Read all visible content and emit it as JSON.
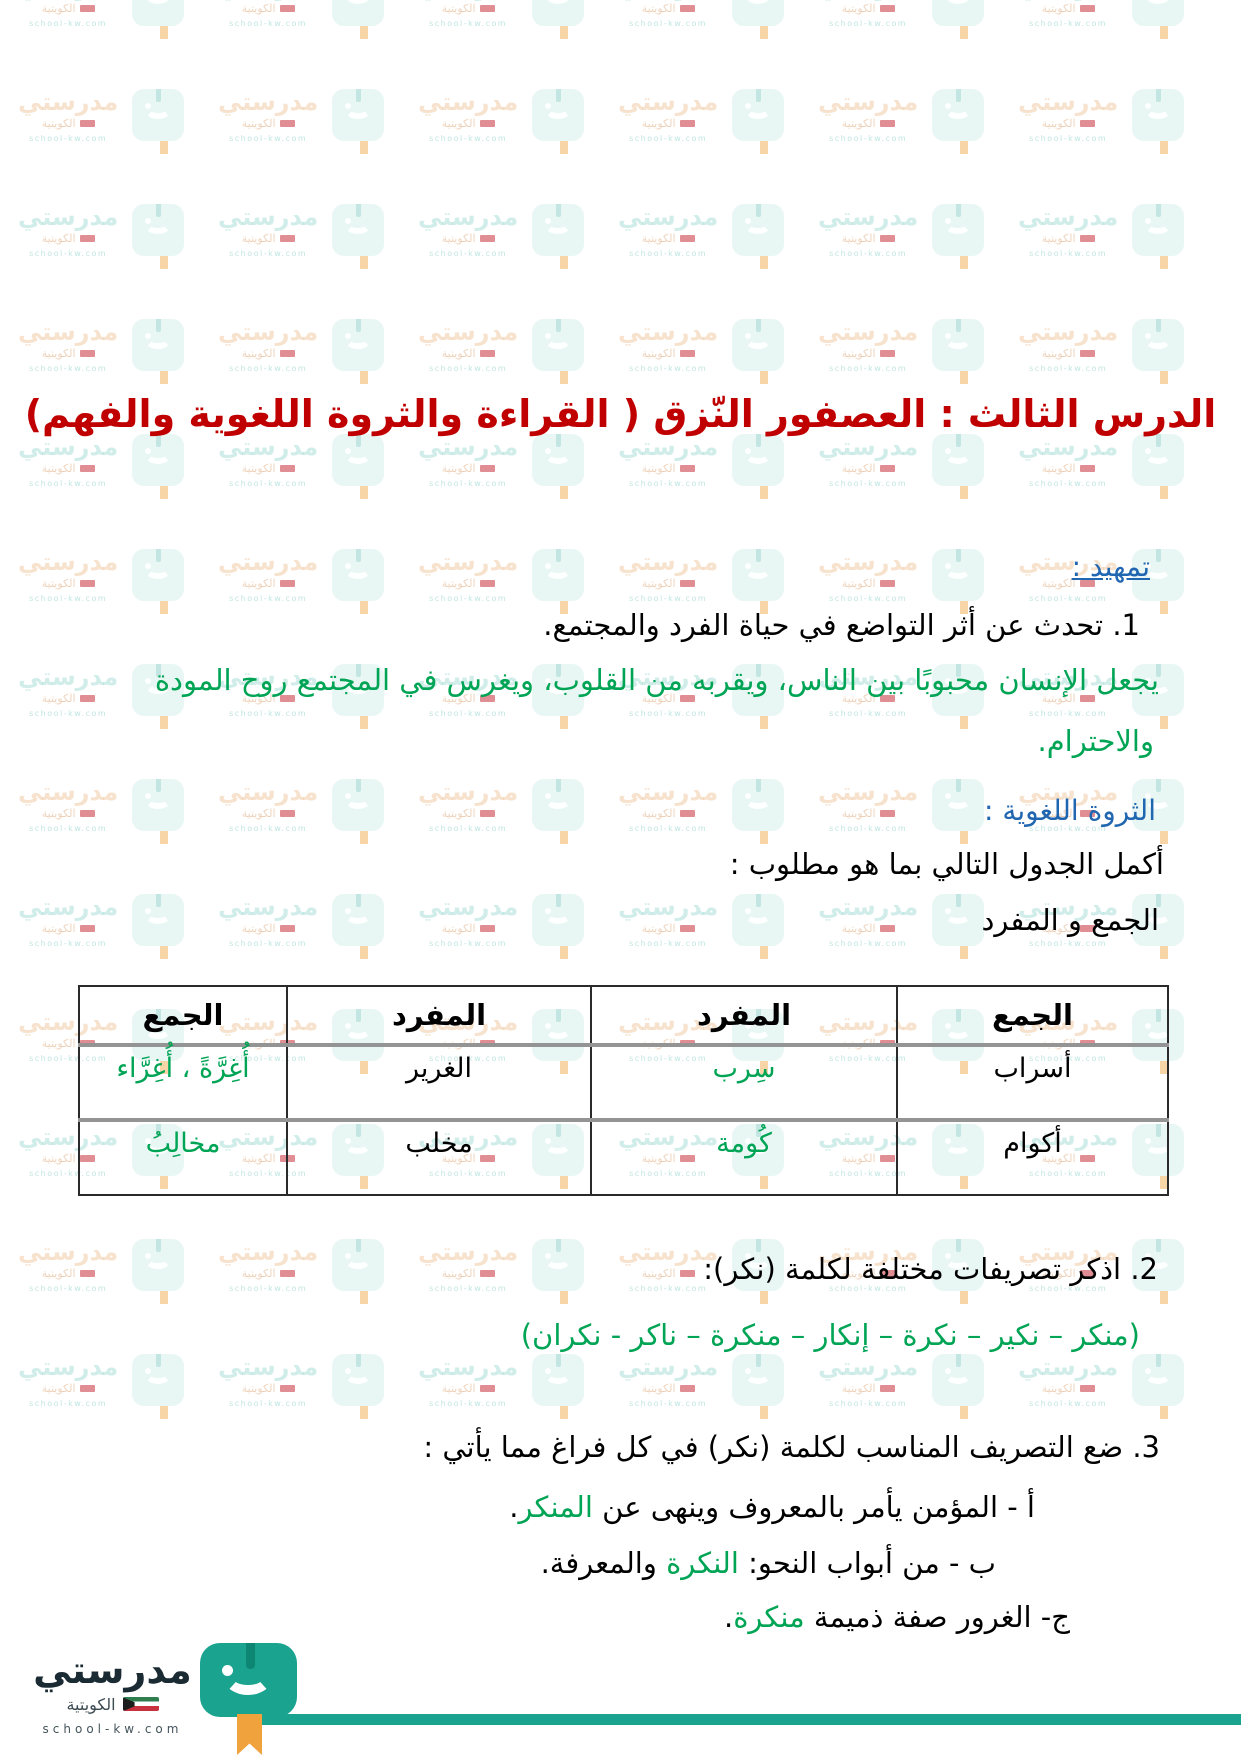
{
  "page": {
    "title": "الدرس الثالث : العصفور النّزق ( القراءة والثروة اللغوية والفهم)"
  },
  "tamheed": {
    "heading": "تمهيد :",
    "q1": "1. تحدث عن أثر التواضع في حياة الفرد والمجتمع.",
    "a1_line1": "يجعل الإنسان محبوبًا بين الناس، ويقربه من القلوب، ويغرس في المجتمع روح المودة",
    "a1_line2": "والاحترام."
  },
  "tharwa": {
    "heading": "الثروة اللغوية :",
    "intro": "أكمل الجدول التالي بما هو مطلوب :",
    "subtitle": "الجمع و المفرد",
    "table": {
      "headers": [
        "الجمع",
        "المفرد",
        "المفرد",
        "الجمع"
      ],
      "rows": [
        [
          "أسراب",
          "سِرب",
          "الغرير",
          "أُغِرَّةً ، أُغِرَّاء"
        ],
        [
          "أكوام",
          "كُومة",
          "مخلب",
          "مخالِبُ"
        ]
      ]
    }
  },
  "q2": {
    "question": "2. اذكر تصريفات مختلفة لكلمة (نكر):",
    "answer": "(منكر – نكير – نكرة – إنكار – منكرة – ناكر - نكران)"
  },
  "q3": {
    "question": "3. ضع التصريف المناسب لكلمة (نكر) في كل فراغ مما يأتي :",
    "items": [
      {
        "pre": "أ - المؤمن يأمر بالمعروف وينهى عن ",
        "green": "المنكر",
        "post": "."
      },
      {
        "pre": "ب - من أبواب النحو: ",
        "green": "النكرة",
        "post": " والمعرفة."
      },
      {
        "pre": "ج- الغرور صفة ذميمة ",
        "green": "منكرة",
        "post": "."
      }
    ]
  },
  "footer": {
    "brand": "مدرستي",
    "country": "الكويتية",
    "site": "school-kw.com"
  },
  "watermark": {
    "brand": "مدرستي",
    "country": "الكويتية",
    "site": "school-kw.com"
  },
  "colors": {
    "title_red": "#c00000",
    "heading_blue": "#2166b0",
    "answer_green": "#00a455",
    "brand_teal": "#1aa38f",
    "bookmark_orange": "#f0a23c",
    "flag_red": "#c8313e",
    "flag_green": "#2e7d4f"
  }
}
